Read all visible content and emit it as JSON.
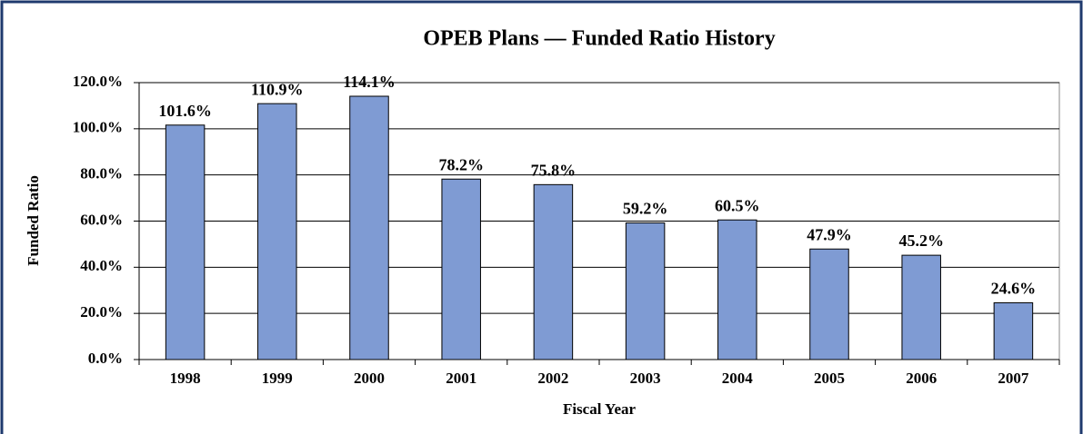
{
  "chart_data": {
    "type": "bar",
    "title": "OPEB Plans — Funded Ratio History",
    "x_label": "Fiscal Year",
    "y_label": "Funded Ratio",
    "categories": [
      "1998",
      "1999",
      "2000",
      "2001",
      "2002",
      "2003",
      "2004",
      "2005",
      "2006",
      "2007"
    ],
    "values": [
      101.6,
      110.9,
      114.1,
      78.2,
      75.8,
      59.2,
      60.5,
      47.9,
      45.2,
      24.6
    ],
    "value_labels": [
      "101.6%",
      "110.9%",
      "114.1%",
      "78.2%",
      "75.8%",
      "59.2%",
      "60.5%",
      "47.9%",
      "45.2%",
      "24.6%"
    ],
    "color": "#7f9bd3",
    "ylim": [
      0,
      120
    ],
    "yticks": [
      {
        "value": 0,
        "label": "0.0%"
      },
      {
        "value": 20,
        "label": "20.0%"
      },
      {
        "value": 40,
        "label": "40.0%"
      },
      {
        "value": 60,
        "label": "60.0%"
      },
      {
        "value": 80,
        "label": "80.0%"
      },
      {
        "value": 100,
        "label": "100.0%"
      },
      {
        "value": 120,
        "label": "120.0%"
      }
    ],
    "grid": true
  }
}
